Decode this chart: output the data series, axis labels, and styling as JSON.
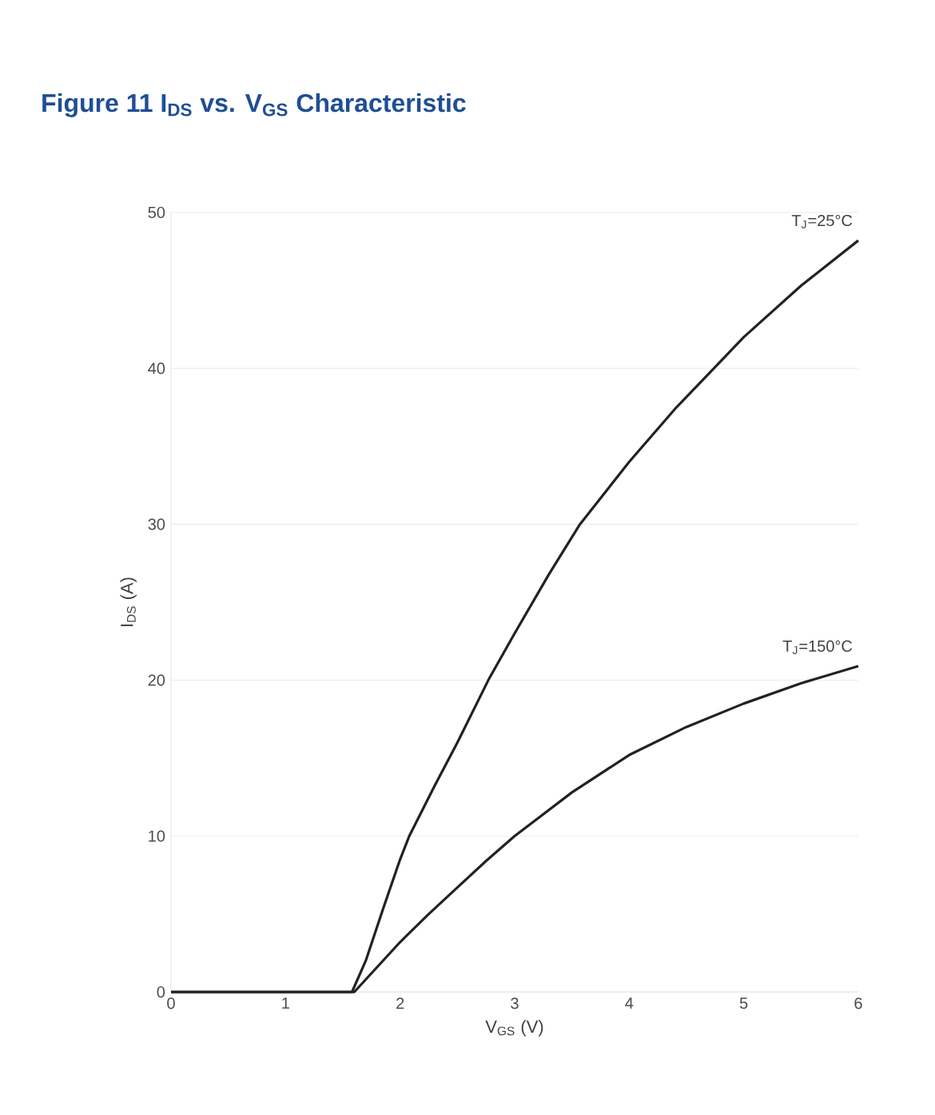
{
  "chart_data": {
    "type": "line",
    "title": "Figure 11 I$_{DS}$ vs. V$_{GS}$ Characteristic",
    "xlabel": "V$_{GS}$ (V)",
    "ylabel": "I$_{DS}$ (A)",
    "xlim": [
      0,
      6
    ],
    "ylim": [
      0,
      50
    ],
    "xticks": [
      0,
      1,
      2,
      3,
      4,
      5,
      6
    ],
    "yticks": [
      0,
      10,
      20,
      30,
      40,
      50
    ],
    "grid": "y",
    "marker": "none",
    "line_style": "solid",
    "series": [
      {
        "color": "#222222",
        "x": [
          0,
          1.0,
          1.5,
          1.58,
          1.7,
          1.85,
          2.0,
          2.08,
          2.3,
          2.5,
          2.77,
          3.0,
          3.3,
          3.57,
          4.0,
          4.4,
          4.74,
          5.0,
          5.5,
          6.0
        ],
        "values": [
          0,
          0,
          0,
          0,
          2,
          5.3,
          8.5,
          10,
          13.2,
          16,
          20,
          23,
          26.8,
          30,
          34,
          37.4,
          40,
          42,
          45.3,
          48.2
        ]
      },
      {
        "color": "#222222",
        "x": [
          0,
          1.0,
          1.5,
          1.6,
          1.8,
          2.0,
          2.25,
          2.5,
          2.75,
          3.0,
          3.5,
          4.0,
          4.5,
          5.0,
          5.5,
          6.0
        ],
        "values": [
          0,
          0,
          0,
          0,
          1.6,
          3.2,
          5.0,
          6.7,
          8.4,
          10,
          12.8,
          15.2,
          17,
          18.5,
          19.8,
          20.9
        ]
      }
    ],
    "annotations": [
      {
        "text": "T$_{J}$=25°C",
        "x": 6,
        "y": 48.2
      },
      {
        "text": "T$_{J}$=150°C",
        "x": 6,
        "y": 20.9
      }
    ]
  }
}
